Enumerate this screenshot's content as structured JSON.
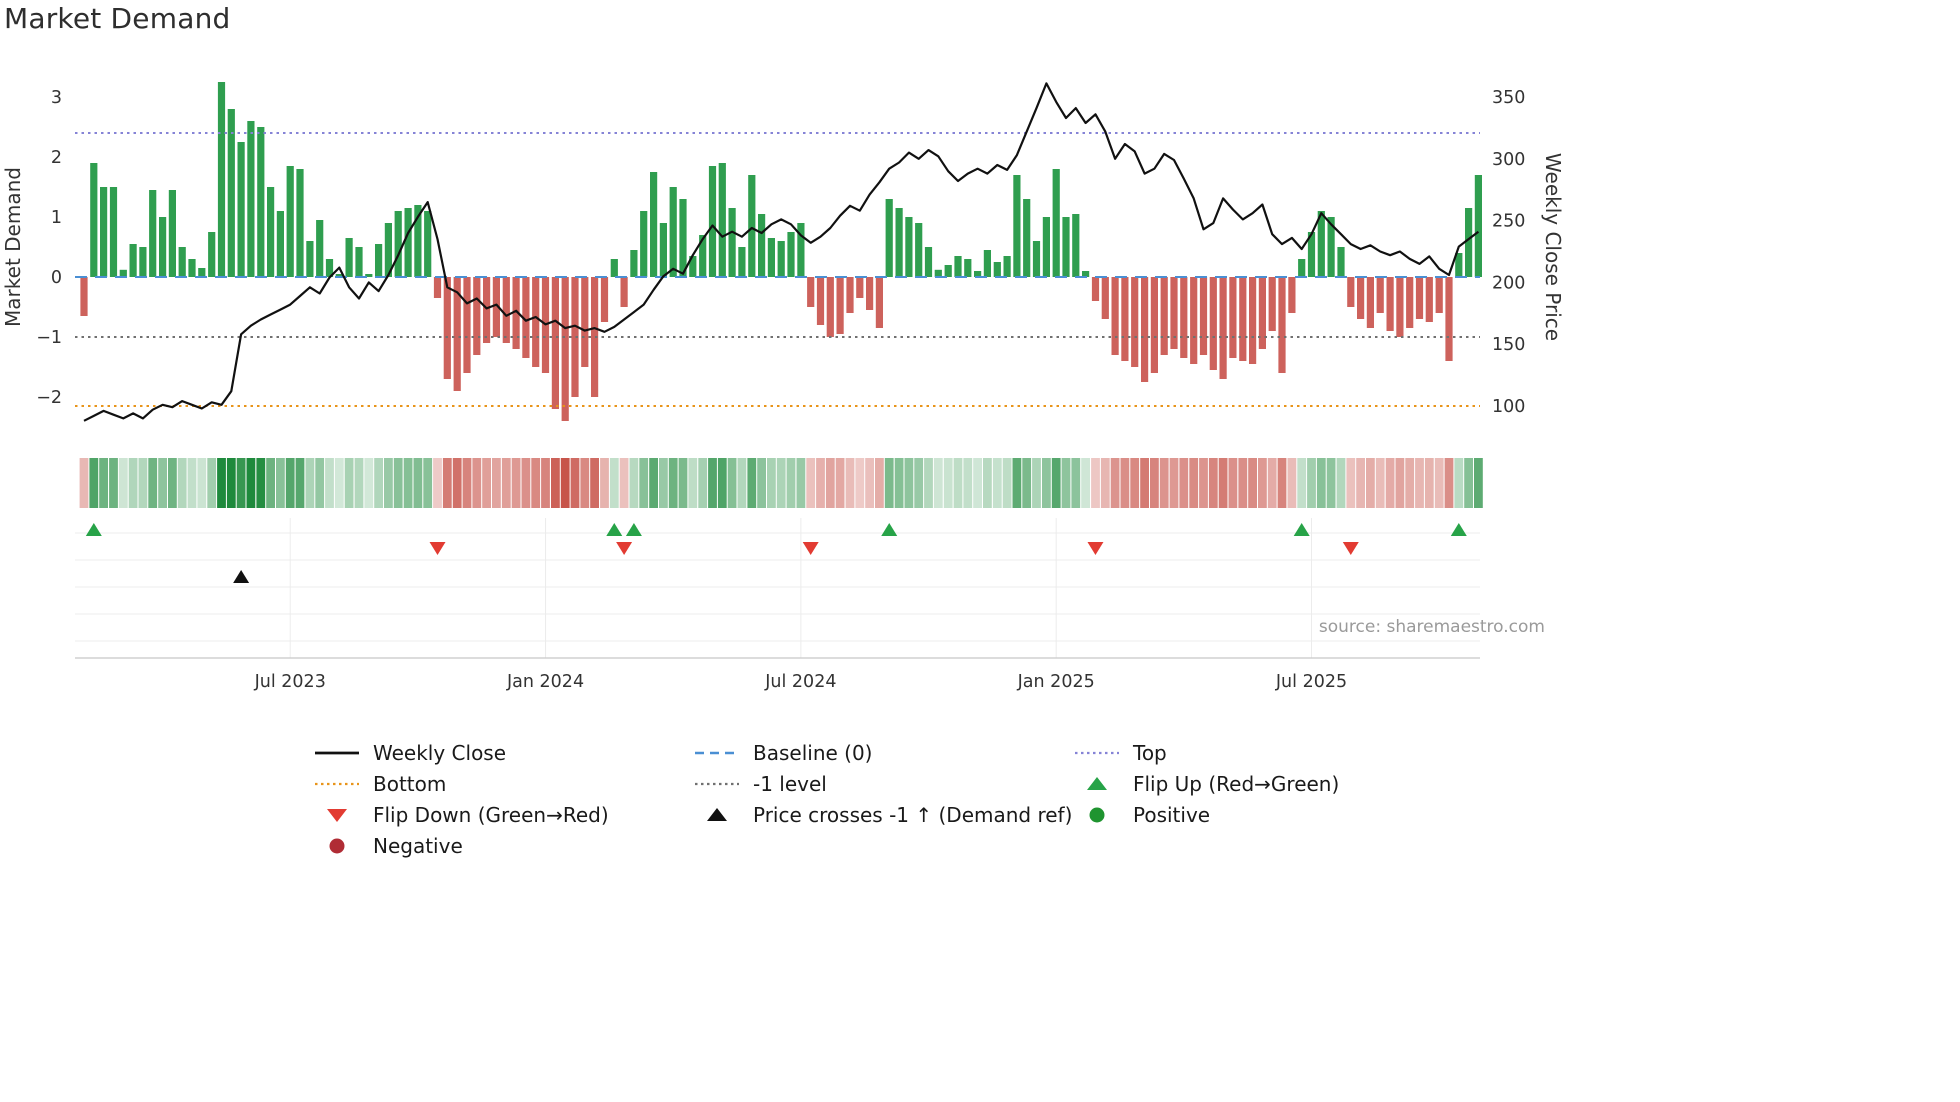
{
  "title": "Market Demand",
  "source_text": "source: sharemaestro.com",
  "colors": {
    "bar_green": "#2f9e4f",
    "bar_red": "#cd625c",
    "heat_green": "#1e8a3c",
    "heat_red": "#c4493f",
    "line_black": "#111111",
    "baseline_blue": "#4a8fd3",
    "top_purple": "#8583d6",
    "bottom_orange": "#e8941a",
    "minus1_gray": "#707070",
    "flip_up_green": "#27a348",
    "flip_down_red": "#e23b32",
    "cross_black": "#111111",
    "positive_green": "#1f9430",
    "negative_darkred": "#b02c35"
  },
  "chart_data": {
    "type": "bar",
    "title": "Market Demand",
    "n_weeks": 143,
    "x_tick_indices": [
      21,
      47,
      73,
      99,
      125
    ],
    "x_tick_labels": [
      "Jul 2023",
      "Jan 2024",
      "Jul 2024",
      "Jan 2025",
      "Jul 2025"
    ],
    "left_axis": {
      "label": "Market Demand",
      "ticks": [
        3,
        2,
        1,
        0,
        -1,
        -2
      ],
      "ylim": [
        -2.85,
        3.35
      ]
    },
    "right_axis": {
      "label": "Weekly Close Price",
      "ticks": [
        350,
        300,
        250,
        200,
        150,
        100
      ],
      "ylim": [
        85,
        365
      ]
    },
    "series": [
      {
        "name": "Market Demand",
        "type": "bar",
        "axis": "left",
        "values": [
          -0.65,
          1.9,
          1.5,
          1.5,
          0.12,
          0.55,
          0.5,
          1.45,
          1.0,
          1.45,
          0.5,
          0.3,
          0.15,
          0.75,
          3.25,
          2.8,
          2.25,
          2.6,
          2.5,
          1.5,
          1.1,
          1.85,
          1.8,
          0.6,
          0.95,
          0.3,
          0.05,
          0.65,
          0.5,
          0.05,
          0.55,
          0.9,
          1.1,
          1.15,
          1.2,
          1.1,
          -0.35,
          -1.7,
          -1.9,
          -1.6,
          -1.3,
          -1.1,
          -1.0,
          -1.1,
          -1.2,
          -1.35,
          -1.5,
          -1.6,
          -2.2,
          -2.4,
          -2.0,
          -1.5,
          -2.0,
          -0.75,
          0.3,
          -0.5,
          0.45,
          1.1,
          1.75,
          0.9,
          1.5,
          1.3,
          0.35,
          0.7,
          1.85,
          1.9,
          1.15,
          0.5,
          1.7,
          1.05,
          0.65,
          0.6,
          0.75,
          0.9,
          -0.5,
          -0.8,
          -1.0,
          -0.95,
          -0.6,
          -0.35,
          -0.55,
          -0.85,
          1.3,
          1.15,
          1.0,
          0.9,
          0.5,
          0.12,
          0.2,
          0.35,
          0.3,
          0.1,
          0.45,
          0.25,
          0.35,
          1.7,
          1.3,
          0.6,
          1.0,
          1.8,
          1.0,
          1.05,
          0.1,
          -0.4,
          -0.7,
          -1.3,
          -1.4,
          -1.5,
          -1.75,
          -1.6,
          -1.3,
          -1.2,
          -1.35,
          -1.45,
          -1.3,
          -1.55,
          -1.7,
          -1.35,
          -1.4,
          -1.45,
          -1.2,
          -0.9,
          -1.6,
          -0.6,
          0.3,
          0.75,
          1.1,
          1.0,
          0.5,
          -0.5,
          -0.7,
          -0.85,
          -0.6,
          -0.9,
          -1.0,
          -0.85,
          -0.7,
          -0.75,
          -0.6,
          -1.4,
          0.4,
          1.15,
          1.7
        ]
      },
      {
        "name": "Weekly Close",
        "type": "line",
        "axis": "right",
        "values": [
          88,
          92,
          96,
          93,
          90,
          94,
          90,
          97,
          101,
          99,
          104,
          101,
          98,
          103,
          101,
          112,
          158,
          165,
          170,
          174,
          178,
          182,
          189,
          196,
          191,
          204,
          212,
          196,
          187,
          200,
          193,
          206,
          222,
          240,
          253,
          265,
          235,
          196,
          192,
          183,
          187,
          179,
          182,
          173,
          177,
          169,
          172,
          166,
          169,
          163,
          165,
          161,
          163,
          160,
          164,
          170,
          176,
          182,
          194,
          205,
          211,
          207,
          222,
          235,
          246,
          237,
          241,
          237,
          244,
          240,
          247,
          251,
          247,
          238,
          232,
          237,
          244,
          254,
          262,
          258,
          271,
          281,
          292,
          297,
          305,
          300,
          307,
          302,
          290,
          282,
          288,
          292,
          288,
          295,
          291,
          303,
          322,
          341,
          361,
          346,
          333,
          341,
          329,
          336,
          322,
          300,
          312,
          306,
          288,
          292,
          304,
          299,
          284,
          268,
          243,
          248,
          268,
          259,
          251,
          256,
          263,
          239,
          231,
          236,
          227,
          239,
          256,
          247,
          239,
          231,
          227,
          230,
          225,
          222,
          225,
          219,
          215,
          221,
          211,
          206,
          229,
          235,
          241
        ]
      }
    ],
    "ref_lines": [
      {
        "name": "Top",
        "value": 2.4,
        "style": "dotted",
        "color": "#8583d6"
      },
      {
        "name": "Baseline (0)",
        "value": 0,
        "style": "dashed",
        "color": "#4a8fd3"
      },
      {
        "name": "-1 level",
        "value": -1,
        "style": "dotted",
        "color": "#707070"
      },
      {
        "name": "Bottom",
        "value": -2.15,
        "style": "dotted",
        "color": "#e8941a"
      }
    ],
    "markers": {
      "flip_up": [
        1,
        54,
        56,
        82,
        124,
        140
      ],
      "flip_down": [
        36,
        55,
        74,
        103,
        129
      ],
      "price_cross": [
        16
      ]
    },
    "heatmap_from": "Market Demand"
  },
  "legend": {
    "columns": [
      [
        {
          "label": "Weekly Close",
          "swatch": "solid-line",
          "color": "#111111"
        },
        {
          "label": "Bottom",
          "swatch": "dotted-line",
          "color": "#e8941a"
        },
        {
          "label": "Flip Down (Green→Red)",
          "swatch": "triangle-down",
          "color": "#e23b32"
        },
        {
          "label": "Negative",
          "swatch": "circle",
          "color": "#b02c35"
        }
      ],
      [
        {
          "label": "Baseline (0)",
          "swatch": "dashed-line",
          "color": "#4a8fd3"
        },
        {
          "label": "-1 level",
          "swatch": "dotted-line",
          "color": "#707070"
        },
        {
          "label": "Price crosses -1 ↑ (Demand ref)",
          "swatch": "triangle-up",
          "color": "#111111"
        }
      ],
      [
        {
          "label": "Top",
          "swatch": "dotted-line",
          "color": "#8583d6"
        },
        {
          "label": "Flip Up (Red→Green)",
          "swatch": "triangle-up",
          "color": "#27a348"
        },
        {
          "label": "Positive",
          "swatch": "circle",
          "color": "#1f9430"
        }
      ]
    ]
  }
}
